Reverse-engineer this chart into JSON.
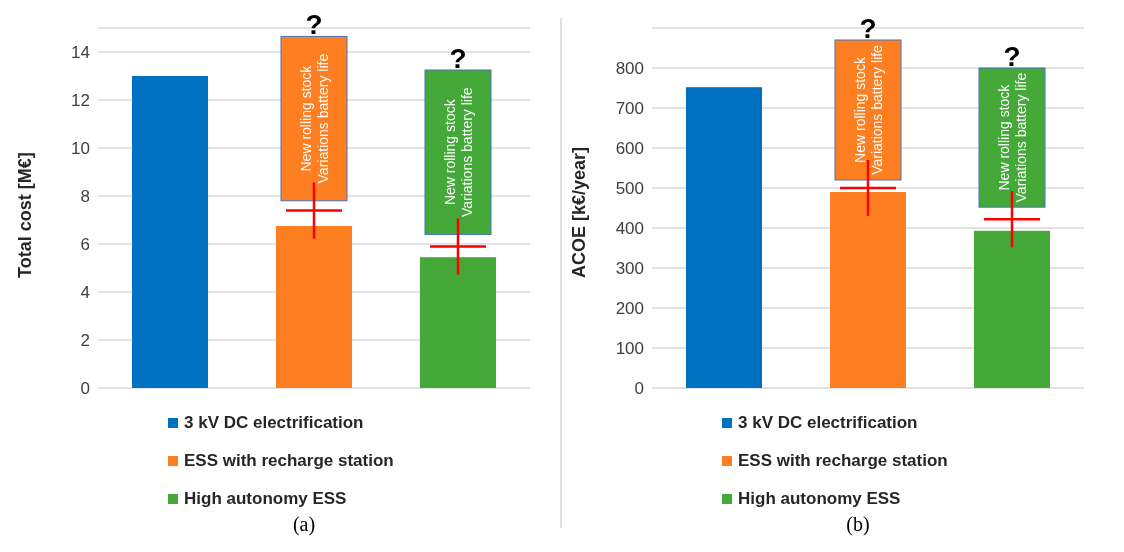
{
  "chart_data": [
    {
      "type": "bar",
      "title": "(a)",
      "ylabel": "Total cost [M€]",
      "categories": [
        null,
        null,
        null
      ],
      "ylim": [
        0,
        15
      ],
      "yticks": [
        0,
        2,
        4,
        6,
        8,
        10,
        12,
        14
      ],
      "grid": "y",
      "legend": "bottom",
      "tick_labels": "y",
      "series": [
        {
          "name": "3 kV DC electrification",
          "color": "#0070c0",
          "values": [
            13.0,
            null,
            null
          ]
        },
        {
          "name": "ESS with recharge station",
          "color": "#fe7f22",
          "values": [
            null,
            6.75,
            null
          ]
        },
        {
          "name": "High autonomy ESS",
          "color": "#45a939",
          "values": [
            null,
            null,
            5.45
          ]
        },
        {
          "color": "#fe7f22",
          "values": [
            null,
            6.85,
            null
          ],
          "base": [
            null,
            7.8,
            null
          ],
          "value_labels": [
            null,
            "New rolling stock\nVariations battery life",
            null
          ]
        },
        {
          "color": "#45a939",
          "values": [
            null,
            null,
            6.85
          ],
          "base": [
            null,
            null,
            6.4
          ],
          "value_labels": [
            null,
            null,
            "New rolling stock\nVariations battery life"
          ]
        },
        {
          "type": "scatter",
          "color": "#ff0000",
          "marker": "cross",
          "values": [
            null,
            7.4,
            5.9
          ],
          "errors": [
            null,
            [
              6.35,
              8.3
            ],
            [
              4.85,
              6.8
            ]
          ]
        }
      ],
      "annotations": [
        "?",
        "?"
      ]
    },
    {
      "type": "bar",
      "title": "(b)",
      "ylabel": "ACOE [k€/year]",
      "categories": [
        null,
        null,
        null
      ],
      "ylim": [
        0,
        900
      ],
      "yticks": [
        0,
        100,
        200,
        300,
        400,
        500,
        600,
        700,
        800
      ],
      "grid": "y",
      "legend": "bottom",
      "tick_labels": "y",
      "series": [
        {
          "name": "3 kV DC electrification",
          "color": "#0070c0",
          "values": [
            752,
            null,
            null
          ]
        },
        {
          "name": "ESS with recharge station",
          "color": "#fe7f22",
          "values": [
            null,
            490,
            null
          ]
        },
        {
          "name": "High autonomy ESS",
          "color": "#45a939",
          "values": [
            null,
            null,
            393
          ]
        },
        {
          "color": "#fe7f22",
          "values": [
            null,
            350,
            null
          ],
          "base": [
            null,
            520,
            null
          ],
          "value_labels": [
            null,
            "New rolling stock\nVariations battery life",
            null
          ]
        },
        {
          "color": "#45a939",
          "values": [
            null,
            null,
            348
          ],
          "base": [
            null,
            null,
            452
          ],
          "value_labels": [
            null,
            null,
            "New rolling stock\nVariations battery life"
          ]
        },
        {
          "type": "scatter",
          "color": "#ff0000",
          "marker": "cross",
          "values": [
            null,
            500,
            422
          ],
          "errors": [
            null,
            [
              445,
              545
            ],
            [
              370,
              468
            ]
          ]
        }
      ],
      "annotations": [
        "?",
        "?"
      ]
    }
  ]
}
